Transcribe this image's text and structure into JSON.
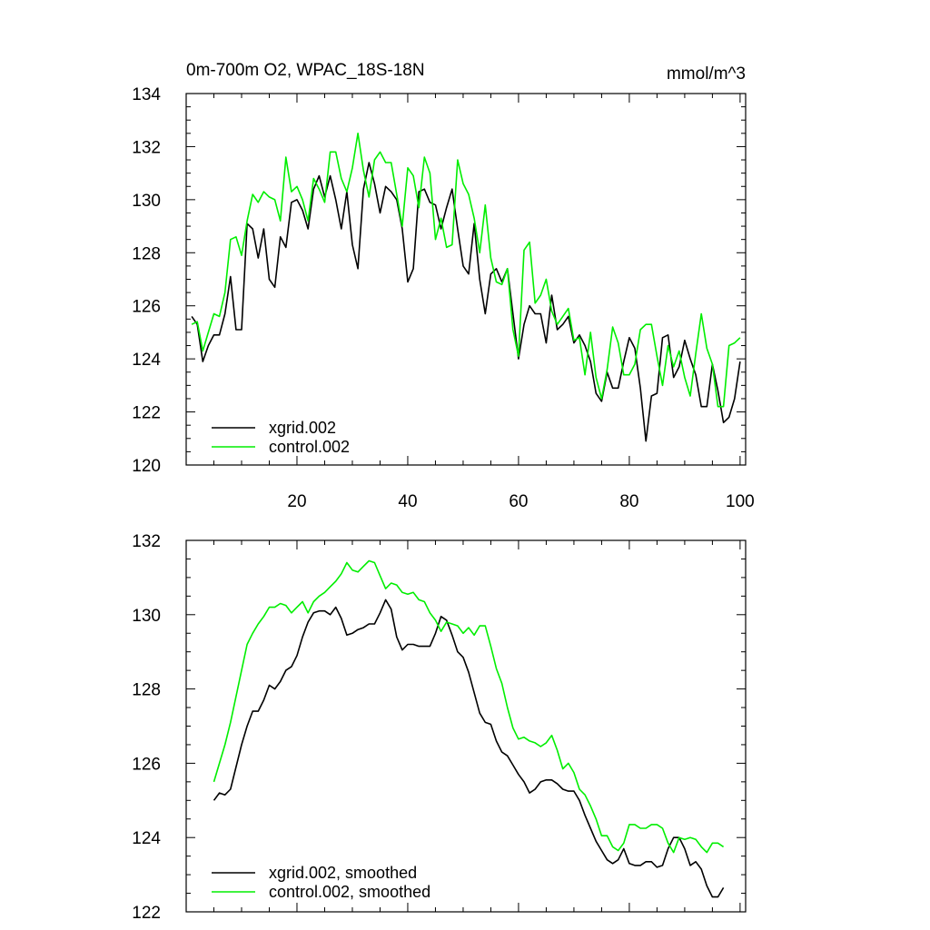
{
  "chart_data": [
    {
      "type": "line",
      "title": "0m-700m O2, WPAC_18S-18N",
      "units": "mmol/m^3",
      "ylim": [
        120,
        134
      ],
      "xlim": [
        0,
        101
      ],
      "yticks": [
        120,
        122,
        124,
        126,
        128,
        130,
        132,
        134
      ],
      "xticks": [
        20,
        40,
        60,
        80,
        100
      ],
      "legend_position": "bottom-left",
      "x_start": 1,
      "series": [
        {
          "name": "xgrid.002",
          "color": "#000000",
          "values": [
            125.6,
            125.3,
            123.9,
            124.5,
            124.9,
            124.9,
            125.7,
            127.1,
            125.1,
            125.1,
            129.1,
            128.9,
            127.8,
            128.9,
            127.0,
            126.7,
            128.6,
            128.2,
            129.9,
            130.0,
            129.6,
            128.9,
            130.4,
            130.9,
            130.1,
            130.9,
            130.0,
            128.9,
            130.3,
            128.3,
            127.4,
            130.4,
            131.4,
            130.6,
            129.5,
            130.5,
            130.3,
            130.0,
            128.9,
            126.9,
            127.4,
            130.3,
            130.4,
            129.9,
            129.8,
            128.9,
            129.7,
            130.4,
            128.9,
            127.5,
            127.2,
            129.1,
            127.0,
            125.7,
            127.2,
            127.4,
            126.9,
            127.4,
            125.7,
            124.0,
            125.3,
            126.0,
            125.7,
            125.7,
            124.6,
            126.4,
            125.1,
            125.3,
            125.6,
            124.6,
            124.9,
            124.5,
            123.9,
            122.7,
            122.4,
            123.5,
            122.9,
            122.9,
            123.9,
            124.8,
            124.4,
            122.9,
            120.9,
            122.6,
            122.7,
            124.8,
            124.9,
            123.3,
            123.7,
            124.7,
            124.0,
            123.4,
            122.2,
            122.2,
            123.8,
            122.8,
            121.6,
            121.8,
            122.5,
            123.9
          ]
        },
        {
          "name": "control.002",
          "color": "#00ee00",
          "values": [
            125.3,
            125.4,
            124.3,
            125.0,
            125.7,
            125.6,
            126.5,
            128.5,
            128.6,
            127.9,
            129.2,
            130.2,
            129.9,
            130.3,
            130.1,
            130.0,
            129.2,
            131.6,
            130.3,
            130.5,
            130.0,
            129.2,
            130.8,
            130.4,
            129.9,
            131.8,
            131.8,
            130.8,
            130.3,
            131.2,
            132.5,
            131.1,
            130.1,
            131.5,
            131.8,
            131.4,
            131.4,
            130.2,
            129.0,
            131.2,
            130.9,
            129.7,
            131.6,
            131.0,
            128.5,
            129.3,
            128.2,
            128.3,
            131.5,
            130.6,
            130.2,
            129.3,
            128.0,
            129.8,
            127.8,
            126.9,
            126.8,
            127.4,
            125.1,
            124.1,
            128.1,
            128.4,
            126.1,
            126.4,
            127.0,
            125.8,
            125.3,
            125.6,
            125.9,
            124.7,
            124.8,
            123.4,
            125.0,
            123.3,
            122.5,
            123.6,
            125.2,
            124.6,
            123.4,
            123.4,
            123.8,
            125.1,
            125.3,
            125.3,
            124.1,
            123.0,
            124.5,
            123.7,
            124.3,
            123.3,
            122.6,
            124.2,
            125.7,
            124.4,
            123.8,
            122.2,
            122.2,
            124.5,
            124.6,
            124.8
          ]
        }
      ]
    },
    {
      "type": "line",
      "title": "",
      "units": "",
      "ylim": [
        122,
        132
      ],
      "xlim": [
        0,
        101
      ],
      "yticks": [
        122,
        124,
        126,
        128,
        130,
        132
      ],
      "xticks": [
        20,
        40,
        60,
        80,
        100
      ],
      "legend_position": "bottom-left",
      "x_start": 5,
      "series": [
        {
          "name": "xgrid.002, smoothed",
          "color": "#000000",
          "values": [
            125.0,
            125.2,
            125.15,
            125.3,
            125.9,
            126.5,
            127.0,
            127.4,
            127.4,
            127.7,
            128.1,
            128.0,
            128.2,
            128.5,
            128.6,
            128.9,
            129.4,
            129.8,
            130.05,
            130.1,
            130.1,
            130.0,
            130.2,
            129.9,
            129.45,
            129.5,
            129.6,
            129.65,
            129.75,
            129.75,
            130.05,
            130.4,
            130.15,
            129.4,
            129.05,
            129.2,
            129.2,
            129.15,
            129.15,
            129.15,
            129.5,
            129.95,
            129.85,
            129.45,
            129.0,
            128.85,
            128.45,
            127.9,
            127.35,
            127.1,
            127.05,
            126.6,
            126.3,
            126.2,
            125.95,
            125.7,
            125.5,
            125.2,
            125.3,
            125.5,
            125.55,
            125.55,
            125.45,
            125.3,
            125.25,
            125.25,
            125.0,
            124.6,
            124.25,
            123.9,
            123.65,
            123.4,
            123.3,
            123.4,
            123.7,
            123.3,
            123.25,
            123.25,
            123.35,
            123.35,
            123.2,
            123.25,
            123.7,
            124.0,
            124.0,
            123.7,
            123.25,
            123.35,
            123.15,
            122.7,
            122.4,
            122.4,
            122.65
          ]
        },
        {
          "name": "control.002, smoothed",
          "color": "#00ee00",
          "values": [
            125.5,
            126.0,
            126.5,
            127.1,
            127.8,
            128.5,
            129.2,
            129.5,
            129.75,
            129.95,
            130.2,
            130.2,
            130.3,
            130.25,
            130.05,
            130.2,
            130.35,
            130.05,
            130.35,
            130.5,
            130.6,
            130.75,
            130.9,
            131.1,
            131.4,
            131.2,
            131.15,
            131.3,
            131.45,
            131.4,
            131.05,
            130.7,
            130.85,
            130.8,
            130.6,
            130.55,
            130.6,
            130.4,
            130.35,
            130.05,
            129.85,
            129.55,
            129.8,
            129.75,
            129.7,
            129.5,
            129.65,
            129.45,
            129.7,
            129.7,
            129.15,
            128.55,
            128.15,
            127.5,
            126.95,
            126.65,
            126.7,
            126.6,
            126.55,
            126.45,
            126.55,
            126.75,
            126.35,
            125.85,
            126.0,
            125.75,
            125.3,
            125.15,
            124.85,
            124.5,
            124.05,
            124.05,
            123.75,
            123.65,
            123.85,
            124.35,
            124.35,
            124.25,
            124.25,
            124.35,
            124.35,
            124.25,
            123.85,
            123.6,
            124.0,
            123.95,
            124.0,
            123.95,
            123.75,
            123.6,
            123.85,
            123.85,
            123.75
          ]
        }
      ]
    }
  ]
}
